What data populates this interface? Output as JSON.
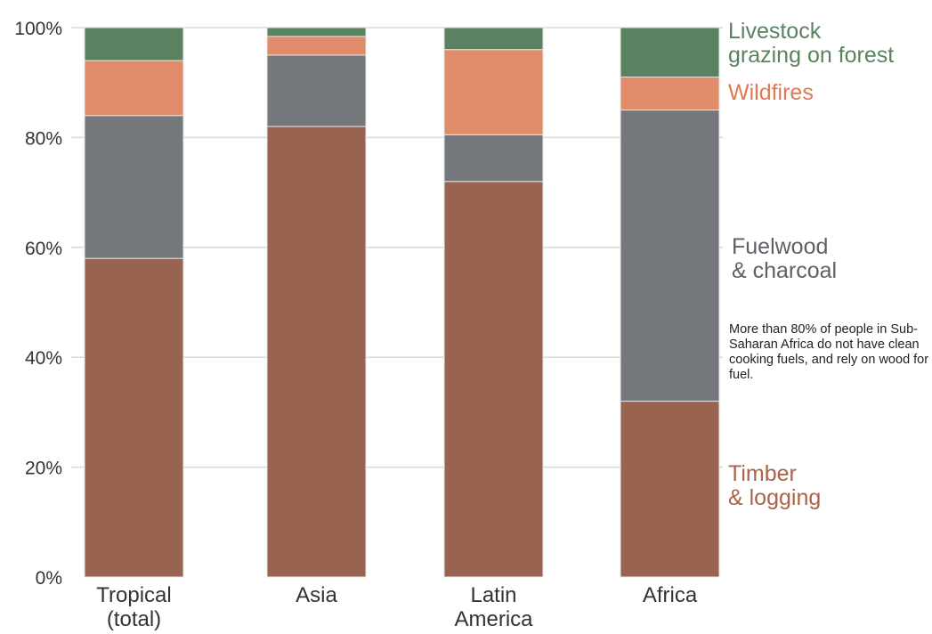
{
  "chart_data": {
    "type": "bar",
    "stacked": true,
    "title": "",
    "xlabel": "",
    "ylabel": "",
    "ylim": [
      0,
      100
    ],
    "yticks": [
      "0%",
      "20%",
      "40%",
      "60%",
      "80%",
      "100%"
    ],
    "ytick_values": [
      0,
      20,
      40,
      60,
      80,
      100
    ],
    "grid": true,
    "categories": [
      [
        "Tropical",
        "(total)"
      ],
      [
        "Asia"
      ],
      [
        "Latin",
        "America"
      ],
      [
        "Africa"
      ]
    ],
    "series": [
      {
        "name": "Timber & logging",
        "label_lines": [
          "Timber",
          "& logging"
        ],
        "color": "#986451",
        "values": [
          58,
          82,
          72,
          32
        ]
      },
      {
        "name": "Fuelwood & charcoal",
        "label_lines": [
          "Fuelwood",
          "& charcoal"
        ],
        "color": "#74777b",
        "values": [
          26,
          13,
          8.5,
          53
        ]
      },
      {
        "name": "Wildfires",
        "label_lines": [
          "Wildfires"
        ],
        "color": "#e08b69",
        "values": [
          10,
          3.4,
          15.5,
          6
        ]
      },
      {
        "name": "Livestock grazing on forest",
        "label_lines": [
          "Livestock",
          "grazing on forest"
        ],
        "color": "#5a8260",
        "values": [
          6,
          1.6,
          4,
          9
        ]
      }
    ],
    "annotation": "More than 80% of people in Sub-Saharan Africa do not have clean cooking fuels, and rely on wood for fuel.",
    "legend_placement": "right (direct labels)"
  }
}
